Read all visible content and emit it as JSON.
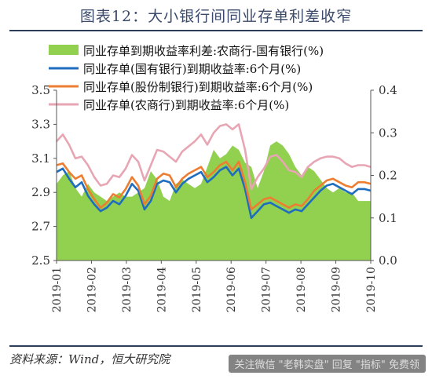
{
  "title": "图表12：大小银行间同业存单利差收窄",
  "source": "资料来源：Wind，恒大研究院",
  "watermark": "关注微信 \"老韩实盘\" 回复 \"指标\" 免费领",
  "chart_data": {
    "type": "line",
    "title": "图表12：大小银行间同业存单利差收窄",
    "x_ticks": [
      "2019-01",
      "2019-02",
      "2019-03",
      "2019-04",
      "2019-05",
      "2019-06",
      "2019-07",
      "2019-08",
      "2019-09",
      "2019-10"
    ],
    "y_left": {
      "min": 2.5,
      "max": 3.5,
      "ticks": [
        "2.5",
        "2.7",
        "2.9",
        "3.1",
        "3.3",
        "3.5"
      ]
    },
    "y_right": {
      "min": 0.0,
      "max": 0.4,
      "ticks": [
        "0.0",
        "0.1",
        "0.2",
        "0.3",
        "0.4"
      ]
    },
    "legend_position": "top-left",
    "x": [
      0,
      0.2,
      0.4,
      0.6,
      0.8,
      1.0,
      1.2,
      1.4,
      1.6,
      1.8,
      2.0,
      2.2,
      2.4,
      2.6,
      2.8,
      3.0,
      3.2,
      3.4,
      3.6,
      3.8,
      4.0,
      4.2,
      4.4,
      4.6,
      4.8,
      5.0,
      5.2,
      5.4,
      5.6,
      5.8,
      6.0,
      6.2,
      6.4,
      6.6,
      6.8,
      7.0,
      7.2,
      7.4,
      7.6,
      7.8,
      8.0,
      8.2,
      8.4,
      8.6,
      8.8,
      9.0,
      9.2,
      9.4,
      9.6,
      9.8,
      10.0
    ],
    "series": [
      {
        "name": "同业存单到期收益率利差:农商行-国有银行(%)",
        "axis": "right",
        "kind": "area",
        "color": "#92d050",
        "values": [
          0.18,
          0.2,
          0.21,
          0.17,
          0.15,
          0.18,
          0.16,
          0.15,
          0.14,
          0.15,
          0.16,
          0.15,
          0.15,
          0.16,
          0.17,
          0.21,
          0.19,
          0.15,
          0.14,
          0.18,
          0.19,
          0.18,
          0.17,
          0.18,
          0.22,
          0.26,
          0.24,
          0.25,
          0.27,
          0.26,
          0.23,
          0.22,
          0.17,
          0.21,
          0.27,
          0.28,
          0.27,
          0.25,
          0.22,
          0.2,
          0.22,
          0.21,
          0.19,
          0.17,
          0.16,
          0.17,
          0.16,
          0.16,
          0.14,
          0.14,
          0.14
        ]
      },
      {
        "name": "同业存单(国有银行)到期收益率:6个月(%)",
        "axis": "left",
        "kind": "line",
        "color": "#1f6dbf",
        "values": [
          3.02,
          3.04,
          2.98,
          2.93,
          2.96,
          2.88,
          2.83,
          2.79,
          2.81,
          2.85,
          2.83,
          2.88,
          2.95,
          2.91,
          2.8,
          2.85,
          2.95,
          2.97,
          2.96,
          2.9,
          2.95,
          2.98,
          3.0,
          3.02,
          2.96,
          2.99,
          3.03,
          3.05,
          3.0,
          3.04,
          2.92,
          2.75,
          2.79,
          2.83,
          2.84,
          2.82,
          2.8,
          2.78,
          2.8,
          2.79,
          2.83,
          2.87,
          2.91,
          2.94,
          2.95,
          2.93,
          2.91,
          2.89,
          2.92,
          2.92,
          2.91
        ]
      },
      {
        "name": "同业存单(股份制银行)到期收益率:6个月(%)",
        "axis": "left",
        "kind": "line",
        "color": "#ed7d31",
        "values": [
          3.06,
          3.07,
          3.02,
          2.98,
          3.0,
          2.92,
          2.86,
          2.81,
          2.84,
          2.89,
          2.87,
          2.92,
          2.99,
          2.94,
          2.83,
          2.88,
          2.98,
          3.01,
          3.0,
          2.93,
          2.98,
          3.01,
          3.03,
          3.05,
          2.99,
          3.02,
          3.06,
          3.08,
          3.03,
          3.08,
          2.96,
          2.8,
          2.83,
          2.86,
          2.87,
          2.85,
          2.83,
          2.81,
          2.83,
          2.82,
          2.86,
          2.91,
          2.94,
          2.97,
          2.98,
          2.96,
          2.94,
          2.93,
          2.96,
          2.96,
          2.95
        ]
      },
      {
        "name": "同业存单(农商行)到期收益率:6个月(%)",
        "axis": "left",
        "kind": "line",
        "color": "#e8a5b3",
        "values": [
          3.2,
          3.24,
          3.18,
          3.1,
          3.11,
          3.06,
          2.99,
          2.94,
          2.95,
          3.0,
          2.99,
          3.04,
          3.12,
          3.08,
          2.97,
          3.06,
          3.15,
          3.14,
          3.11,
          3.08,
          3.14,
          3.17,
          3.2,
          3.24,
          3.18,
          3.25,
          3.29,
          3.3,
          3.27,
          3.3,
          3.15,
          2.92,
          2.99,
          3.04,
          3.11,
          3.12,
          3.08,
          3.03,
          3.02,
          2.99,
          3.05,
          3.08,
          3.1,
          3.11,
          3.11,
          3.1,
          3.07,
          3.05,
          3.06,
          3.06,
          3.05
        ]
      }
    ]
  }
}
